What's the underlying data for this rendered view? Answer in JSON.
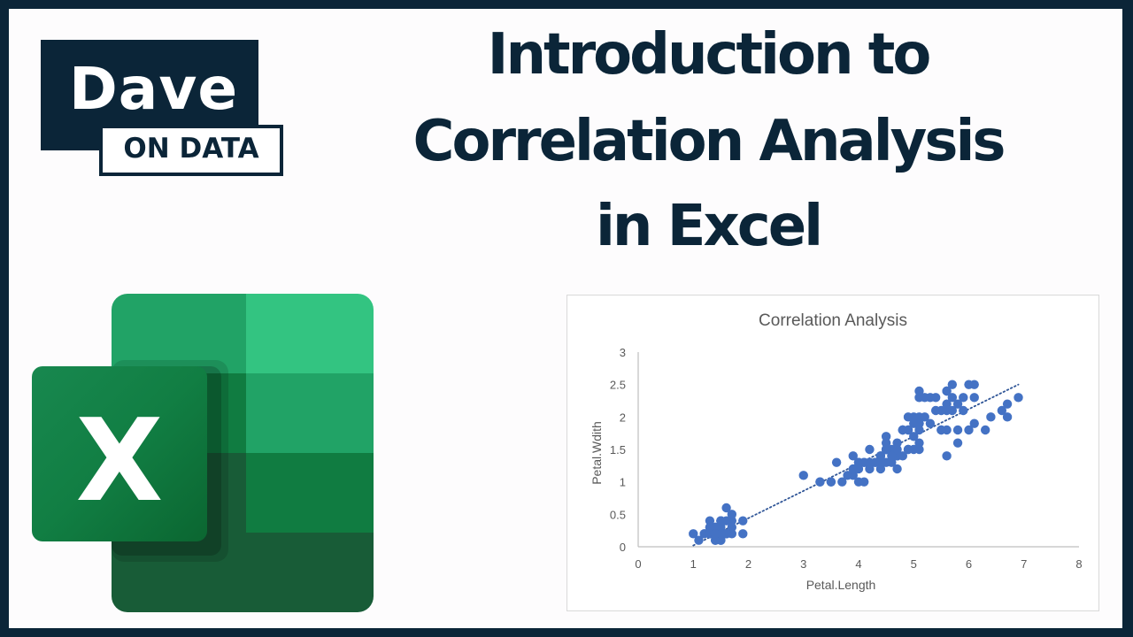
{
  "brand": {
    "name_line1": "Dave",
    "name_line2": "ON DATA",
    "colors": {
      "navy": "#0b2538",
      "white": "#ffffff"
    }
  },
  "headline": {
    "line1": "Introduction to",
    "line2": "Correlation Analysis",
    "line3": "in Excel"
  },
  "app_icon": {
    "name": "Microsoft Excel",
    "glyph": "X",
    "colors": {
      "light": "#33c481",
      "mid": "#21a366",
      "main": "#107c41",
      "dark": "#185c37",
      "tile": "#107c41"
    }
  },
  "chart_data": {
    "type": "scatter",
    "title": "Correlation Analysis",
    "xlabel": "Petal.Length",
    "ylabel": "Petal.Wdith",
    "xlim": [
      0,
      8
    ],
    "ylim": [
      0,
      3
    ],
    "x_ticks": [
      "0",
      "1",
      "2",
      "3",
      "4",
      "5",
      "6",
      "7",
      "8"
    ],
    "y_ticks": [
      "0",
      "0.5",
      "1",
      "1.5",
      "2",
      "2.5",
      "3"
    ],
    "grid": false,
    "legend": "none",
    "marker_color": "#4472c4",
    "trendline": {
      "type": "linear",
      "style": "dotted",
      "color": "#2f5597",
      "from": [
        1.0,
        0.02
      ],
      "to": [
        6.9,
        2.5
      ]
    },
    "points": [
      [
        1.4,
        0.2
      ],
      [
        1.4,
        0.2
      ],
      [
        1.3,
        0.2
      ],
      [
        1.5,
        0.2
      ],
      [
        1.4,
        0.2
      ],
      [
        1.7,
        0.4
      ],
      [
        1.4,
        0.3
      ],
      [
        1.5,
        0.2
      ],
      [
        1.4,
        0.2
      ],
      [
        1.5,
        0.1
      ],
      [
        1.5,
        0.2
      ],
      [
        1.6,
        0.2
      ],
      [
        1.4,
        0.1
      ],
      [
        1.1,
        0.1
      ],
      [
        1.2,
        0.2
      ],
      [
        1.5,
        0.4
      ],
      [
        1.3,
        0.4
      ],
      [
        1.4,
        0.3
      ],
      [
        1.7,
        0.3
      ],
      [
        1.5,
        0.3
      ],
      [
        1.7,
        0.2
      ],
      [
        1.5,
        0.4
      ],
      [
        1.0,
        0.2
      ],
      [
        1.7,
        0.5
      ],
      [
        1.9,
        0.2
      ],
      [
        1.6,
        0.2
      ],
      [
        1.6,
        0.4
      ],
      [
        1.5,
        0.2
      ],
      [
        1.4,
        0.2
      ],
      [
        1.6,
        0.2
      ],
      [
        1.6,
        0.2
      ],
      [
        1.5,
        0.4
      ],
      [
        1.5,
        0.1
      ],
      [
        1.4,
        0.2
      ],
      [
        1.5,
        0.2
      ],
      [
        1.2,
        0.2
      ],
      [
        1.3,
        0.2
      ],
      [
        1.4,
        0.1
      ],
      [
        1.3,
        0.2
      ],
      [
        1.5,
        0.2
      ],
      [
        1.3,
        0.3
      ],
      [
        1.3,
        0.3
      ],
      [
        1.3,
        0.2
      ],
      [
        1.6,
        0.6
      ],
      [
        1.9,
        0.4
      ],
      [
        1.4,
        0.3
      ],
      [
        1.6,
        0.2
      ],
      [
        1.4,
        0.2
      ],
      [
        1.5,
        0.2
      ],
      [
        1.4,
        0.2
      ],
      [
        4.7,
        1.4
      ],
      [
        4.5,
        1.5
      ],
      [
        4.9,
        1.5
      ],
      [
        4.0,
        1.3
      ],
      [
        4.6,
        1.5
      ],
      [
        4.5,
        1.3
      ],
      [
        4.7,
        1.6
      ],
      [
        3.3,
        1.0
      ],
      [
        4.6,
        1.3
      ],
      [
        3.9,
        1.4
      ],
      [
        3.5,
        1.0
      ],
      [
        4.2,
        1.5
      ],
      [
        4.0,
        1.0
      ],
      [
        4.7,
        1.4
      ],
      [
        3.6,
        1.3
      ],
      [
        4.4,
        1.4
      ],
      [
        4.5,
        1.5
      ],
      [
        4.1,
        1.0
      ],
      [
        4.5,
        1.5
      ],
      [
        3.9,
        1.1
      ],
      [
        4.8,
        1.8
      ],
      [
        4.0,
        1.3
      ],
      [
        4.9,
        1.5
      ],
      [
        4.7,
        1.2
      ],
      [
        4.3,
        1.3
      ],
      [
        4.4,
        1.4
      ],
      [
        4.8,
        1.4
      ],
      [
        5.0,
        1.7
      ],
      [
        4.5,
        1.5
      ],
      [
        3.5,
        1.0
      ],
      [
        3.8,
        1.1
      ],
      [
        3.7,
        1.0
      ],
      [
        3.9,
        1.2
      ],
      [
        5.1,
        1.6
      ],
      [
        4.5,
        1.5
      ],
      [
        4.5,
        1.6
      ],
      [
        4.7,
        1.5
      ],
      [
        4.4,
        1.3
      ],
      [
        4.1,
        1.3
      ],
      [
        4.0,
        1.3
      ],
      [
        4.4,
        1.2
      ],
      [
        4.6,
        1.4
      ],
      [
        4.0,
        1.2
      ],
      [
        3.3,
        1.0
      ],
      [
        4.2,
        1.3
      ],
      [
        4.2,
        1.2
      ],
      [
        4.2,
        1.3
      ],
      [
        4.3,
        1.3
      ],
      [
        3.0,
        1.1
      ],
      [
        4.1,
        1.3
      ],
      [
        6.0,
        2.5
      ],
      [
        5.1,
        1.9
      ],
      [
        5.9,
        2.1
      ],
      [
        5.6,
        1.8
      ],
      [
        5.8,
        2.2
      ],
      [
        6.6,
        2.1
      ],
      [
        4.5,
        1.7
      ],
      [
        6.3,
        1.8
      ],
      [
        5.8,
        1.8
      ],
      [
        6.1,
        2.5
      ],
      [
        5.1,
        2.0
      ],
      [
        5.3,
        1.9
      ],
      [
        5.5,
        2.1
      ],
      [
        5.0,
        2.0
      ],
      [
        5.1,
        2.4
      ],
      [
        5.3,
        2.3
      ],
      [
        5.5,
        1.8
      ],
      [
        6.7,
        2.2
      ],
      [
        6.9,
        2.3
      ],
      [
        5.0,
        1.5
      ],
      [
        5.7,
        2.3
      ],
      [
        4.9,
        2.0
      ],
      [
        6.7,
        2.0
      ],
      [
        4.9,
        1.8
      ],
      [
        5.7,
        2.1
      ],
      [
        6.0,
        1.8
      ],
      [
        4.8,
        1.8
      ],
      [
        4.9,
        1.8
      ],
      [
        5.6,
        2.1
      ],
      [
        5.8,
        1.6
      ],
      [
        6.1,
        1.9
      ],
      [
        6.4,
        2.0
      ],
      [
        5.6,
        2.2
      ],
      [
        5.1,
        1.5
      ],
      [
        5.6,
        1.4
      ],
      [
        6.1,
        2.3
      ],
      [
        5.6,
        2.4
      ],
      [
        5.5,
        1.8
      ],
      [
        4.8,
        1.8
      ],
      [
        5.4,
        2.1
      ],
      [
        5.6,
        2.4
      ],
      [
        5.1,
        2.3
      ],
      [
        5.1,
        1.9
      ],
      [
        5.9,
        2.3
      ],
      [
        5.7,
        2.5
      ],
      [
        5.2,
        2.3
      ],
      [
        5.0,
        1.9
      ],
      [
        5.2,
        2.0
      ],
      [
        5.4,
        2.3
      ],
      [
        5.1,
        1.8
      ]
    ]
  }
}
